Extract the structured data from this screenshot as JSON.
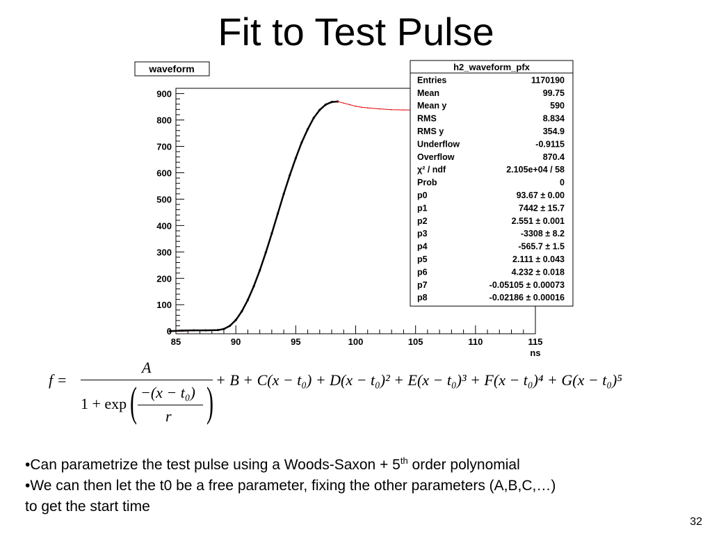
{
  "slide": {
    "title": "Fit to Test Pulse",
    "page_number": "32"
  },
  "chart_data": {
    "type": "line",
    "title": "waveform",
    "xlabel": "ns",
    "ylabel": "",
    "xlim": [
      85,
      115
    ],
    "ylim": [
      -10,
      920
    ],
    "x_ticks": [
      85,
      90,
      95,
      100,
      105,
      110,
      115
    ],
    "y_ticks": [
      0,
      100,
      200,
      300,
      400,
      500,
      600,
      700,
      800,
      900
    ],
    "grid": false,
    "legend": "none",
    "series": [
      {
        "color": "#000000",
        "x": [
          84.5,
          85.5,
          86.5,
          87.5,
          88.5,
          89.0,
          89.5,
          90.0,
          90.5,
          91.0,
          91.5,
          92.0,
          92.5,
          93.0,
          93.5,
          94.0,
          94.5,
          95.0,
          95.5,
          96.0,
          96.5,
          97.0,
          97.5,
          98.0,
          98.5
        ],
        "y": [
          0,
          2,
          3,
          3,
          4,
          8,
          20,
          42,
          75,
          118,
          170,
          230,
          298,
          370,
          445,
          520,
          590,
          655,
          715,
          765,
          808,
          838,
          858,
          868,
          870
        ]
      },
      {
        "color": "#e00000",
        "x": [
          98.5,
          99.0,
          99.5,
          100.0,
          100.5,
          101.0,
          102.0,
          103.0,
          104.0,
          105.0,
          106.0,
          107.0,
          108.0,
          109.0,
          110.0,
          111.0,
          112.0,
          113.0,
          114.0,
          115.0
        ],
        "y": [
          870,
          864,
          858,
          852,
          848,
          846,
          842,
          839,
          838,
          838,
          839,
          840,
          841,
          842,
          843,
          844,
          845,
          846,
          847,
          848
        ]
      }
    ],
    "stats_box": {
      "title": "h2_waveform_pfx",
      "rows": [
        {
          "label": "Entries",
          "value": "1170190"
        },
        {
          "label": "Mean",
          "value": "99.75"
        },
        {
          "label": "Mean y",
          "value": "590"
        },
        {
          "label": "RMS",
          "value": "8.834"
        },
        {
          "label": "RMS y",
          "value": "354.9"
        },
        {
          "label": "Underflow",
          "value": "-0.9115"
        },
        {
          "label": "Overflow",
          "value": "870.4"
        },
        {
          "label": "χ² / ndf",
          "value": "2.105e+04 / 58"
        },
        {
          "label": "Prob",
          "value": "0"
        },
        {
          "label": "p0",
          "value": "93.67 ± 0.00"
        },
        {
          "label": "p1",
          "value": "7442 ± 15.7"
        },
        {
          "label": "p2",
          "value": "2.551 ± 0.001"
        },
        {
          "label": "p3",
          "value": "-3308 ± 8.2"
        },
        {
          "label": "p4",
          "value": "-565.7 ± 1.5"
        },
        {
          "label": "p5",
          "value": "2.111 ± 0.043"
        },
        {
          "label": "p6",
          "value": "4.232 ± 0.018"
        },
        {
          "label": "p7",
          "value": "-0.05105 ± 0.00073"
        },
        {
          "label": "p8",
          "value": "-0.02186 ± 0.00016"
        }
      ]
    }
  },
  "formula": {
    "lhs": "f =",
    "numerator": "A",
    "denominator_prefix": "1 + exp",
    "inner_numerator": "−(x − t₀)",
    "inner_denominator": "r",
    "rhs": "+ B + C(x − t₀) + D(x − t₀)² + E(x − t₀)³ + F(x − t₀)⁴ + G(x − t₀)⁵"
  },
  "bullets": {
    "line1_main": "•Can parametrize the test pulse using a Woods-Saxon + 5",
    "line1_sup": "th",
    "line1_end": " order polynomial",
    "line2": "•We can then let the t0 be a free parameter, fixing the other parameters (A,B,C,…)",
    "line3": "to get the start time"
  }
}
